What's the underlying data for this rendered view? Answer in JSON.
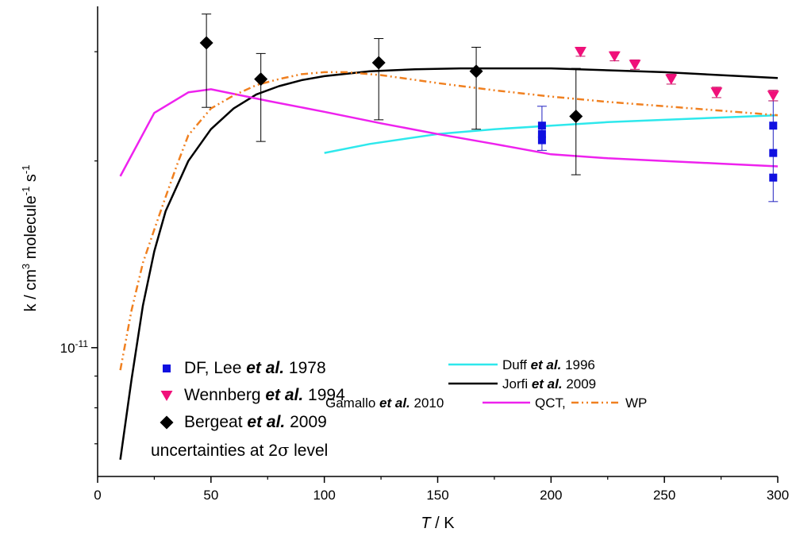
{
  "chart_data": {
    "type": "scatter",
    "xlabel": {
      "italic": "T",
      "rest": " / K"
    },
    "ylabel": {
      "base": "k / cm",
      "sup1": "3",
      "mid": " molecule",
      "sup2": "-1",
      "end": " s",
      "sup3": "-1"
    },
    "xlim": [
      0,
      300
    ],
    "ylim": [
      6.2e-12,
      3.55e-11
    ],
    "yscale": "log",
    "xticks": [
      0,
      50,
      100,
      150,
      200,
      250,
      300
    ],
    "xtick_labels": [
      "0",
      "50",
      "100",
      "150",
      "200",
      "250",
      "300"
    ],
    "ytick_label": {
      "base": "10",
      "exp": "-11"
    },
    "ytick_value": 1e-11,
    "grid": false,
    "legend_position": "bottom-left",
    "series": [
      {
        "kind": "points",
        "marker": "square",
        "color": "#1010e0",
        "legend": {
          "pre": "DF, Lee ",
          "italic": "et al.",
          "post": " 1978"
        },
        "points": [
          {
            "x": 196,
            "y": 2.28e-11,
            "err": [
              2.08e-11,
              2.45e-11
            ]
          },
          {
            "x": 196,
            "y": 2.21e-11
          },
          {
            "x": 196,
            "y": 2.16e-11
          },
          {
            "x": 298,
            "y": 2.28e-11,
            "err": [
              1.72e-11,
              2.5e-11
            ]
          },
          {
            "x": 298,
            "y": 2.06e-11
          },
          {
            "x": 298,
            "y": 1.88e-11
          }
        ]
      },
      {
        "kind": "points",
        "marker": "triangle-down",
        "color": "#f0107a",
        "legend": {
          "pre": "Wennberg ",
          "italic": "et al.",
          "post": " 1994"
        },
        "points": [
          {
            "x": 213,
            "y": 3e-11,
            "err": [
              2.95e-11,
              3.05e-11
            ]
          },
          {
            "x": 228,
            "y": 2.95e-11,
            "err": [
              2.9e-11,
              3e-11
            ]
          },
          {
            "x": 237,
            "y": 2.86e-11,
            "err": [
              2.81e-11,
              2.91e-11
            ]
          },
          {
            "x": 253,
            "y": 2.71e-11,
            "err": [
              2.66e-11,
              2.76e-11
            ]
          },
          {
            "x": 273,
            "y": 2.58e-11,
            "err": [
              2.53e-11,
              2.63e-11
            ]
          },
          {
            "x": 298,
            "y": 2.55e-11,
            "err": [
              2.5e-11,
              2.6e-11
            ]
          }
        ]
      },
      {
        "kind": "points",
        "marker": "diamond",
        "color": "#000000",
        "legend": {
          "pre": "Bergeat ",
          "italic": "et al.",
          "post": " 2009"
        },
        "points": [
          {
            "x": 48,
            "y": 3.1e-11,
            "err": [
              2.44e-11,
              3.45e-11
            ]
          },
          {
            "x": 72,
            "y": 2.71e-11,
            "err": [
              2.15e-11,
              2.98e-11
            ]
          },
          {
            "x": 124,
            "y": 2.88e-11,
            "err": [
              2.33e-11,
              3.15e-11
            ]
          },
          {
            "x": 167,
            "y": 2.79e-11,
            "err": [
              2.25e-11,
              3.05e-11
            ]
          },
          {
            "x": 211,
            "y": 2.36e-11,
            "err": [
              1.9e-11,
              2.82e-11
            ]
          }
        ]
      },
      {
        "kind": "line",
        "color": "#2ee8ec",
        "dash": "none",
        "legend": {
          "pre": "Duff ",
          "italic": "et al.",
          "post": " 1996"
        },
        "x": [
          100,
          120,
          150,
          175,
          200,
          225,
          250,
          275,
          300
        ],
        "y": [
          2.06e-11,
          2.13e-11,
          2.21e-11,
          2.25e-11,
          2.28e-11,
          2.31e-11,
          2.33e-11,
          2.35e-11,
          2.37e-11
        ]
      },
      {
        "kind": "line",
        "color": "#000000",
        "dash": "none",
        "legend": {
          "pre": "Jorfi ",
          "italic": "et al.",
          "post": " 2009"
        },
        "x": [
          10,
          15,
          20,
          25,
          30,
          40,
          50,
          60,
          70,
          80,
          90,
          100,
          120,
          140,
          160,
          180,
          200,
          225,
          250,
          275,
          300
        ],
        "y": [
          6.6e-12,
          8.9e-12,
          1.17e-11,
          1.43e-11,
          1.66e-11,
          2e-11,
          2.25e-11,
          2.43e-11,
          2.56e-11,
          2.64e-11,
          2.7e-11,
          2.74e-11,
          2.79e-11,
          2.81e-11,
          2.82e-11,
          2.82e-11,
          2.82e-11,
          2.8e-11,
          2.78e-11,
          2.75e-11,
          2.72e-11
        ]
      },
      {
        "kind": "line",
        "color": "#ee22ee",
        "dash": "none",
        "legend": {
          "pre": "",
          "italic": "",
          "post": "QCT,"
        },
        "x": [
          10,
          25,
          40,
          50,
          75,
          100,
          125,
          150,
          175,
          200,
          225,
          250,
          275,
          300
        ],
        "y": [
          1.89e-11,
          2.39e-11,
          2.58e-11,
          2.61e-11,
          2.5e-11,
          2.4e-11,
          2.3e-11,
          2.21e-11,
          2.13e-11,
          2.05e-11,
          2.02e-11,
          2e-11,
          1.98e-11,
          1.96e-11
        ]
      },
      {
        "kind": "line",
        "color": "#f08020",
        "dash": "9,4,2,4,2,4",
        "legend": {
          "pre": "",
          "italic": "",
          "post": "WP"
        },
        "x": [
          10,
          15,
          20,
          25,
          30,
          35,
          40,
          50,
          60,
          70,
          80,
          90,
          100,
          110,
          125,
          150,
          175,
          200,
          225,
          250,
          275,
          300
        ],
        "y": [
          9.2e-12,
          1.15e-11,
          1.37e-11,
          1.55e-11,
          1.75e-11,
          1.97e-11,
          2.2e-11,
          2.43e-11,
          2.55e-11,
          2.65e-11,
          2.71e-11,
          2.76e-11,
          2.78e-11,
          2.78e-11,
          2.75e-11,
          2.67e-11,
          2.6e-11,
          2.54e-11,
          2.49e-11,
          2.45e-11,
          2.41e-11,
          2.37e-11
        ]
      }
    ],
    "legend_extra": {
      "uncertainty": {
        "text": "uncertainties at 2",
        "greek": "σ",
        "end": " level"
      },
      "gamallo": {
        "pre": "Gamallo ",
        "italic": "et al.",
        "post": " 2010"
      }
    }
  }
}
